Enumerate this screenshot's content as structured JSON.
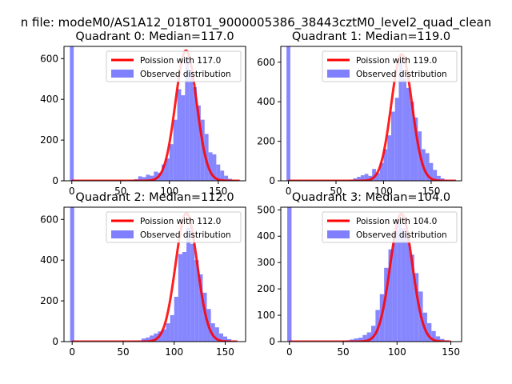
{
  "figure": {
    "suptitle": "n file: modeM0/AS1A12_018T01_9000005386_38443cztM0_level2_quad_clean"
  },
  "chart_data": [
    {
      "type": "bar",
      "title": "Quadrant 0: Median=117.0",
      "xlim": [
        -8,
        178
      ],
      "ylim": [
        0,
        660
      ],
      "xticks": [
        0,
        50,
        100,
        150
      ],
      "yticks": [
        0,
        200,
        400,
        600
      ],
      "legend": {
        "placement": "top-right",
        "entries": [
          "Poission with 117.0",
          "Observed distribution"
        ]
      },
      "series": [
        {
          "name": "Poission with 117.0",
          "kind": "line",
          "mean": 117.0,
          "peak": 640,
          "sigma": 10.8,
          "x_range": [
            0,
            172
          ],
          "color": "#ff0000"
        },
        {
          "name": "Observed distribution",
          "kind": "histogram",
          "color": "#8080ff",
          "bins": [
            [
              -2,
              2,
              660
            ],
            [
              60,
              64,
              5
            ],
            [
              64,
              68,
              8
            ],
            [
              68,
              72,
              22
            ],
            [
              72,
              76,
              18
            ],
            [
              76,
              80,
              30
            ],
            [
              80,
              84,
              25
            ],
            [
              84,
              88,
              45
            ],
            [
              88,
              92,
              40
            ],
            [
              92,
              96,
              80
            ],
            [
              96,
              100,
              110
            ],
            [
              100,
              104,
              180
            ],
            [
              104,
              108,
              300
            ],
            [
              108,
              112,
              450
            ],
            [
              112,
              116,
              420
            ],
            [
              116,
              120,
              610
            ],
            [
              120,
              124,
              540
            ],
            [
              124,
              128,
              460
            ],
            [
              128,
              132,
              370
            ],
            [
              132,
              136,
              300
            ],
            [
              136,
              140,
              230
            ],
            [
              140,
              144,
              140
            ],
            [
              144,
              148,
              130
            ],
            [
              148,
              152,
              80
            ],
            [
              152,
              156,
              50
            ],
            [
              156,
              160,
              25
            ],
            [
              160,
              164,
              10
            ],
            [
              164,
              168,
              5
            ]
          ]
        }
      ]
    },
    {
      "type": "bar",
      "title": "Quadrant 1: Median=119.0",
      "xlim": [
        -8,
        182
      ],
      "ylim": [
        0,
        680
      ],
      "xticks": [
        0,
        50,
        100,
        150
      ],
      "yticks": [
        0,
        200,
        400,
        600
      ],
      "legend": {
        "placement": "top-right",
        "entries": [
          "Poission with 119.0",
          "Observed distribution"
        ]
      },
      "series": [
        {
          "name": "Poission with 119.0",
          "kind": "line",
          "mean": 119.0,
          "peak": 640,
          "sigma": 10.9,
          "x_range": [
            0,
            176
          ],
          "color": "#ff0000"
        },
        {
          "name": "Observed distribution",
          "kind": "histogram",
          "color": "#8080ff",
          "bins": [
            [
              -2,
              2,
              680
            ],
            [
              64,
              68,
              6
            ],
            [
              68,
              72,
              12
            ],
            [
              72,
              76,
              20
            ],
            [
              76,
              80,
              28
            ],
            [
              80,
              84,
              35
            ],
            [
              84,
              88,
              25
            ],
            [
              88,
              92,
              60
            ],
            [
              92,
              96,
              40
            ],
            [
              96,
              100,
              90
            ],
            [
              100,
              104,
              160
            ],
            [
              104,
              108,
              230
            ],
            [
              108,
              112,
              350
            ],
            [
              112,
              116,
              420
            ],
            [
              116,
              120,
              610
            ],
            [
              120,
              124,
              520
            ],
            [
              124,
              128,
              470
            ],
            [
              128,
              132,
              400
            ],
            [
              132,
              136,
              320
            ],
            [
              136,
              140,
              250
            ],
            [
              140,
              144,
              160
            ],
            [
              144,
              148,
              140
            ],
            [
              148,
              152,
              90
            ],
            [
              152,
              156,
              55
            ],
            [
              156,
              160,
              25
            ],
            [
              160,
              164,
              12
            ],
            [
              164,
              168,
              5
            ]
          ]
        }
      ]
    },
    {
      "type": "bar",
      "title": "Quadrant 2: Median=112.0",
      "xlim": [
        -8,
        170
      ],
      "ylim": [
        0,
        660
      ],
      "xticks": [
        0,
        50,
        100,
        150
      ],
      "yticks": [
        0,
        200,
        400,
        600
      ],
      "legend": {
        "placement": "top-right",
        "entries": [
          "Poission with 112.0",
          "Observed distribution"
        ]
      },
      "series": [
        {
          "name": "Poission with 112.0",
          "kind": "line",
          "mean": 112.0,
          "peak": 630,
          "sigma": 10.6,
          "x_range": [
            0,
            162
          ],
          "color": "#ff0000"
        },
        {
          "name": "Observed distribution",
          "kind": "histogram",
          "color": "#8080ff",
          "bins": [
            [
              -2,
              2,
              660
            ],
            [
              60,
              64,
              5
            ],
            [
              64,
              68,
              6
            ],
            [
              68,
              72,
              15
            ],
            [
              72,
              76,
              20
            ],
            [
              76,
              80,
              30
            ],
            [
              80,
              84,
              40
            ],
            [
              84,
              88,
              50
            ],
            [
              88,
              92,
              60
            ],
            [
              92,
              96,
              90
            ],
            [
              96,
              100,
              130
            ],
            [
              100,
              104,
              220
            ],
            [
              104,
              108,
              430
            ],
            [
              108,
              112,
              440
            ],
            [
              112,
              116,
              560
            ],
            [
              116,
              120,
              480
            ],
            [
              120,
              124,
              400
            ],
            [
              124,
              128,
              330
            ],
            [
              128,
              132,
              240
            ],
            [
              132,
              136,
              160
            ],
            [
              136,
              140,
              90
            ],
            [
              140,
              144,
              70
            ],
            [
              144,
              148,
              40
            ],
            [
              148,
              152,
              25
            ],
            [
              152,
              156,
              12
            ],
            [
              156,
              160,
              5
            ]
          ]
        }
      ]
    },
    {
      "type": "bar",
      "title": "Quadrant 3: Median=104.0",
      "xlim": [
        -8,
        160
      ],
      "ylim": [
        0,
        510
      ],
      "xticks": [
        0,
        50,
        100,
        150
      ],
      "yticks": [
        0,
        100,
        200,
        300,
        400,
        500
      ],
      "legend": {
        "placement": "top-right",
        "entries": [
          "Poission with 104.0",
          "Observed distribution"
        ]
      },
      "series": [
        {
          "name": "Poission with 104.0",
          "kind": "line",
          "mean": 104.0,
          "peak": 485,
          "sigma": 10.2,
          "x_range": [
            0,
            150
          ],
          "color": "#ff0000"
        },
        {
          "name": "Observed distribution",
          "kind": "histogram",
          "color": "#8080ff",
          "bins": [
            [
              -2,
              2,
              510
            ],
            [
              48,
              52,
              3
            ],
            [
              52,
              56,
              5
            ],
            [
              56,
              60,
              8
            ],
            [
              60,
              64,
              12
            ],
            [
              64,
              68,
              15
            ],
            [
              68,
              72,
              25
            ],
            [
              72,
              76,
              35
            ],
            [
              76,
              80,
              60
            ],
            [
              80,
              84,
              120
            ],
            [
              84,
              88,
              180
            ],
            [
              88,
              92,
              280
            ],
            [
              92,
              96,
              350
            ],
            [
              96,
              100,
              420
            ],
            [
              100,
              104,
              470
            ],
            [
              104,
              108,
              430
            ],
            [
              108,
              112,
              400
            ],
            [
              112,
              116,
              330
            ],
            [
              116,
              120,
              260
            ],
            [
              120,
              124,
              190
            ],
            [
              124,
              128,
              110
            ],
            [
              128,
              132,
              70
            ],
            [
              132,
              136,
              40
            ],
            [
              136,
              140,
              20
            ],
            [
              140,
              144,
              10
            ],
            [
              144,
              148,
              5
            ]
          ]
        }
      ]
    }
  ]
}
